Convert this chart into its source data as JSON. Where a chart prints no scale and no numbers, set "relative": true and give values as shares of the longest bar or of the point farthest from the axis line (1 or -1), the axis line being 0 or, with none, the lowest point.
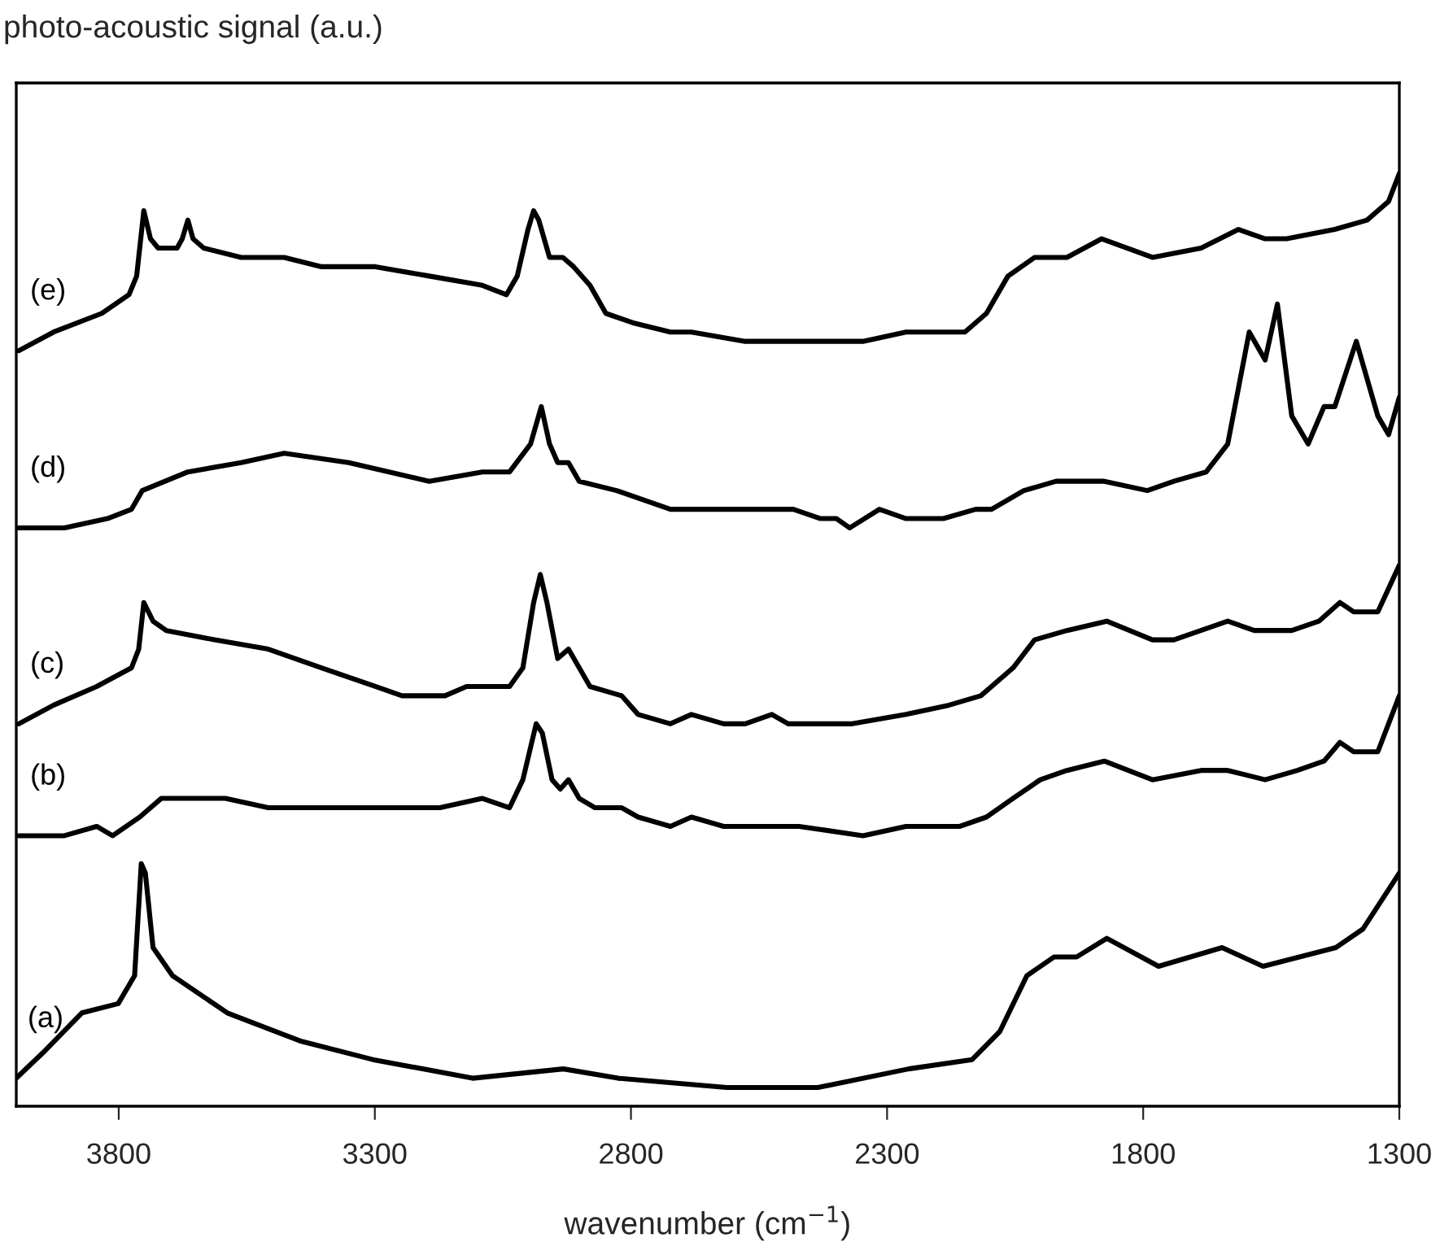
{
  "chart_data": {
    "type": "line",
    "relative": true,
    "ylabel": "photo-acoustic signal (a.u.)",
    "xlabel": "wavenumber (cm$^{−1}$)",
    "xlim": [
      4000,
      1300
    ],
    "xticks": [
      3800,
      3300,
      2800,
      2300,
      1800,
      1300
    ],
    "grid": false,
    "legend": false,
    "marker": "none",
    "line_style": "solid",
    "series": [
      {
        "name": "(e)",
        "color": "#000000",
        "x": [
          3995,
          3927,
          3833,
          3780,
          3765,
          3751,
          3738,
          3723,
          3686,
          3676,
          3665,
          3655,
          3634,
          3561,
          3477,
          3404,
          3299,
          3194,
          3090,
          3043,
          3022,
          3001,
          2990,
          2980,
          2959,
          2933,
          2912,
          2880,
          2849,
          2797,
          2723,
          2682,
          2577,
          2420,
          2347,
          2263,
          2148,
          2106,
          2064,
          2012,
          1949,
          1881,
          1782,
          1687,
          1614,
          1562,
          1541,
          1520,
          1426,
          1363,
          1321,
          1300
        ],
        "values": [
          0.81,
          0.83,
          0.85,
          0.87,
          0.89,
          0.96,
          0.93,
          0.92,
          0.92,
          0.93,
          0.95,
          0.93,
          0.92,
          0.91,
          0.91,
          0.9,
          0.9,
          0.89,
          0.88,
          0.87,
          0.89,
          0.94,
          0.96,
          0.95,
          0.91,
          0.91,
          0.9,
          0.88,
          0.85,
          0.84,
          0.83,
          0.83,
          0.82,
          0.82,
          0.82,
          0.83,
          0.83,
          0.85,
          0.89,
          0.91,
          0.91,
          0.93,
          0.91,
          0.92,
          0.94,
          0.93,
          0.93,
          0.93,
          0.94,
          0.95,
          0.97,
          1.0
        ]
      },
      {
        "name": "(d)",
        "color": "#000000",
        "x": [
          3995,
          3906,
          3822,
          3775,
          3754,
          3665,
          3561,
          3477,
          3351,
          3194,
          3090,
          3037,
          2996,
          2975,
          2959,
          2943,
          2922,
          2901,
          2828,
          2723,
          2682,
          2577,
          2483,
          2430,
          2399,
          2373,
          2315,
          2263,
          2190,
          2127,
          2096,
          2033,
          1970,
          1876,
          1792,
          1740,
          1677,
          1635,
          1593,
          1562,
          1538,
          1510,
          1478,
          1447,
          1426,
          1384,
          1342,
          1321,
          1300
        ],
        "values": [
          0.62,
          0.62,
          0.63,
          0.64,
          0.66,
          0.68,
          0.69,
          0.7,
          0.69,
          0.67,
          0.68,
          0.68,
          0.71,
          0.75,
          0.71,
          0.69,
          0.69,
          0.67,
          0.66,
          0.64,
          0.64,
          0.64,
          0.64,
          0.63,
          0.63,
          0.62,
          0.64,
          0.63,
          0.63,
          0.64,
          0.64,
          0.66,
          0.67,
          0.67,
          0.66,
          0.67,
          0.68,
          0.71,
          0.83,
          0.8,
          0.86,
          0.74,
          0.71,
          0.75,
          0.75,
          0.82,
          0.74,
          0.72,
          0.76
        ]
      },
      {
        "name": "(c)",
        "color": "#000000",
        "x": [
          3995,
          3927,
          3843,
          3775,
          3761,
          3751,
          3733,
          3707,
          3613,
          3508,
          3404,
          3299,
          3247,
          3163,
          3121,
          3069,
          3037,
          3011,
          2990,
          2977,
          2964,
          2943,
          2922,
          2901,
          2880,
          2818,
          2786,
          2723,
          2682,
          2619,
          2577,
          2525,
          2493,
          2368,
          2263,
          2179,
          2117,
          2054,
          2012,
          1949,
          1871,
          1782,
          1740,
          1635,
          1583,
          1510,
          1457,
          1416,
          1389,
          1342,
          1300
        ],
        "values": [
          0.41,
          0.43,
          0.45,
          0.47,
          0.49,
          0.54,
          0.52,
          0.51,
          0.5,
          0.49,
          0.47,
          0.45,
          0.44,
          0.44,
          0.45,
          0.45,
          0.45,
          0.47,
          0.54,
          0.57,
          0.54,
          0.48,
          0.49,
          0.47,
          0.45,
          0.44,
          0.42,
          0.41,
          0.42,
          0.41,
          0.41,
          0.42,
          0.41,
          0.41,
          0.42,
          0.43,
          0.44,
          0.47,
          0.5,
          0.51,
          0.52,
          0.5,
          0.5,
          0.52,
          0.51,
          0.51,
          0.52,
          0.54,
          0.53,
          0.53,
          0.58
        ]
      },
      {
        "name": "(b)",
        "color": "#000000",
        "x": [
          3995,
          3906,
          3843,
          3812,
          3759,
          3717,
          3665,
          3592,
          3508,
          3404,
          3299,
          3173,
          3090,
          3037,
          3011,
          2985,
          2973,
          2954,
          2938,
          2922,
          2901,
          2870,
          2818,
          2786,
          2723,
          2682,
          2619,
          2577,
          2525,
          2472,
          2347,
          2263,
          2158,
          2106,
          2054,
          2001,
          1949,
          1876,
          1782,
          1687,
          1635,
          1562,
          1499,
          1447,
          1416,
          1389,
          1342,
          1300
        ],
        "values": [
          0.29,
          0.29,
          0.3,
          0.29,
          0.31,
          0.33,
          0.33,
          0.33,
          0.32,
          0.32,
          0.32,
          0.32,
          0.33,
          0.32,
          0.35,
          0.41,
          0.4,
          0.35,
          0.34,
          0.35,
          0.33,
          0.32,
          0.32,
          0.31,
          0.3,
          0.31,
          0.3,
          0.3,
          0.3,
          0.3,
          0.29,
          0.3,
          0.3,
          0.31,
          0.33,
          0.35,
          0.36,
          0.37,
          0.35,
          0.36,
          0.36,
          0.35,
          0.36,
          0.37,
          0.39,
          0.38,
          0.38,
          0.44
        ]
      },
      {
        "name": "(a)",
        "color": "#000000",
        "x": [
          4000,
          3943,
          3872,
          3801,
          3769,
          3756,
          3748,
          3733,
          3695,
          3588,
          3446,
          3304,
          3109,
          2932,
          2825,
          2613,
          2435,
          2258,
          2134,
          2080,
          2027,
          1974,
          1930,
          1871,
          1770,
          1646,
          1566,
          1424,
          1371,
          1300
        ],
        "values": [
          0.03,
          0.06,
          0.1,
          0.11,
          0.14,
          0.26,
          0.25,
          0.17,
          0.14,
          0.1,
          0.07,
          0.05,
          0.03,
          0.04,
          0.03,
          0.02,
          0.02,
          0.04,
          0.05,
          0.08,
          0.14,
          0.16,
          0.16,
          0.18,
          0.15,
          0.17,
          0.15,
          0.17,
          0.19,
          0.25
        ]
      }
    ]
  }
}
